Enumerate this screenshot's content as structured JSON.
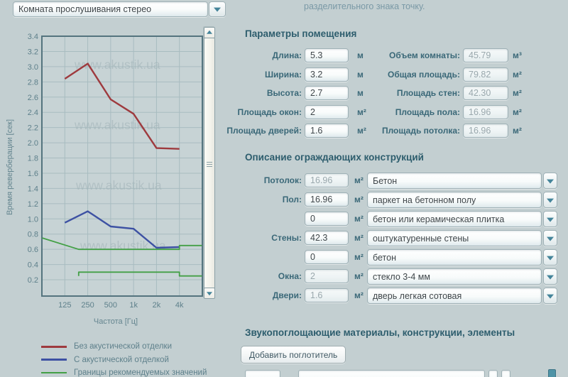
{
  "colors": {
    "background": "#c3cfd1",
    "accent_teal": "#44849a",
    "heading": "#2d5d6d",
    "label": "#3a6878",
    "note_text": "#7a99a6",
    "readonly_text": "#9aa8ad",
    "chart_border": "#54747e",
    "chart_grid": "#a8bcc0",
    "watermark": "#a3b5b9"
  },
  "top_bar": {
    "room_preset_value": "Комната прослушивания стерео",
    "note": "разделительного знака точку."
  },
  "chart_data": {
    "type": "line",
    "xlabel": "Частота [Гц]",
    "ylabel": "Время реверберации [сек]",
    "x_scale": "log2",
    "xlim": [
      62.5,
      8000
    ],
    "ylim": [
      0,
      3.4
    ],
    "y_tick_step": 0.2,
    "y_tick_min": 0.2,
    "y_tick_max": 3.4,
    "x_tick_values": [
      125,
      250,
      500,
      1000,
      2000,
      4000
    ],
    "x_tick_labels": [
      "125",
      "250",
      "500",
      "1k",
      "2k",
      "4k"
    ],
    "grid": true,
    "legend_position": "bottom-left",
    "watermark": "www.akustik.ua",
    "series": [
      {
        "name": "Без акустической отделки",
        "color": "#9e3a3e",
        "width": 2.4,
        "segments": [
          [
            [
              125,
              2.84
            ],
            [
              250,
              3.04
            ],
            [
              500,
              2.57
            ],
            [
              1000,
              2.38
            ],
            [
              2000,
              1.93
            ],
            [
              4000,
              1.92
            ]
          ]
        ]
      },
      {
        "name": "С акустической отделкой",
        "color": "#3d51a3",
        "width": 2.4,
        "segments": [
          [
            [
              125,
              0.95
            ],
            [
              250,
              1.1
            ],
            [
              500,
              0.9
            ],
            [
              1000,
              0.87
            ],
            [
              2000,
              0.62
            ],
            [
              4000,
              0.63
            ]
          ]
        ]
      },
      {
        "name": "Границы рекомендуемых значений",
        "color": "#43a046",
        "width": 1.8,
        "segments": [
          [
            [
              63,
              0.75
            ],
            [
              190,
              0.6
            ],
            [
              4000,
              0.6
            ],
            [
              4000,
              0.65
            ],
            [
              7900,
              0.65
            ]
          ],
          [
            [
              190,
              0.25
            ],
            [
              190,
              0.3
            ],
            [
              4000,
              0.3
            ],
            [
              4000,
              0.25
            ],
            [
              7900,
              0.25
            ]
          ]
        ]
      }
    ]
  },
  "params": {
    "title": "Параметры помещения",
    "left": [
      {
        "label": "Длина:",
        "value": "5.3",
        "unit": "м",
        "readonly": false
      },
      {
        "label": "Ширина:",
        "value": "3.2",
        "unit": "м",
        "readonly": false
      },
      {
        "label": "Высота:",
        "value": "2.7",
        "unit": "м",
        "readonly": false
      },
      {
        "label": "Площадь окон:",
        "value": "2",
        "unit": "м²",
        "readonly": false
      },
      {
        "label": "Площадь дверей:",
        "value": "1.6",
        "unit": "м²",
        "readonly": false
      }
    ],
    "right": [
      {
        "label": "Объем комнаты:",
        "value": "45.79",
        "unit": "м³",
        "readonly": true
      },
      {
        "label": "Общая площадь:",
        "value": "79.82",
        "unit": "м²",
        "readonly": true
      },
      {
        "label": "Площадь стен:",
        "value": "42.30",
        "unit": "м²",
        "readonly": true
      },
      {
        "label": "Площадь пола:",
        "value": "16.96",
        "unit": "м²",
        "readonly": true
      },
      {
        "label": "Площадь потолка:",
        "value": "16.96",
        "unit": "м²",
        "readonly": true
      }
    ]
  },
  "constructions": {
    "title": "Описание ограждающих конструкций",
    "rows": [
      {
        "label": "Потолок:",
        "area": "16.96",
        "unit": "м²",
        "readonly": true,
        "material": "Бетон"
      },
      {
        "label": "Пол:",
        "area": "16.96",
        "unit": "м²",
        "readonly": false,
        "material": "паркет на бетонном полу"
      },
      {
        "label": "",
        "area": "0",
        "unit": "м²",
        "readonly": false,
        "material": "бетон или керамическая плитка"
      },
      {
        "label": "Стены:",
        "area": "42.3",
        "unit": "м²",
        "readonly": false,
        "material": "оштукатуренные стены"
      },
      {
        "label": "",
        "area": "0",
        "unit": "м²",
        "readonly": false,
        "material": "бетон"
      },
      {
        "label": "Окна:",
        "area": "2",
        "unit": "м²",
        "readonly": true,
        "material": "стекло 3-4 мм"
      },
      {
        "label": "Двери:",
        "area": "1.6",
        "unit": "м²",
        "readonly": true,
        "material": "дверь легкая сотовая"
      }
    ]
  },
  "absorbers": {
    "title": "Звукопоглощающие материалы, конструкции, элементы",
    "add_button": "Добавить поглотитель"
  }
}
